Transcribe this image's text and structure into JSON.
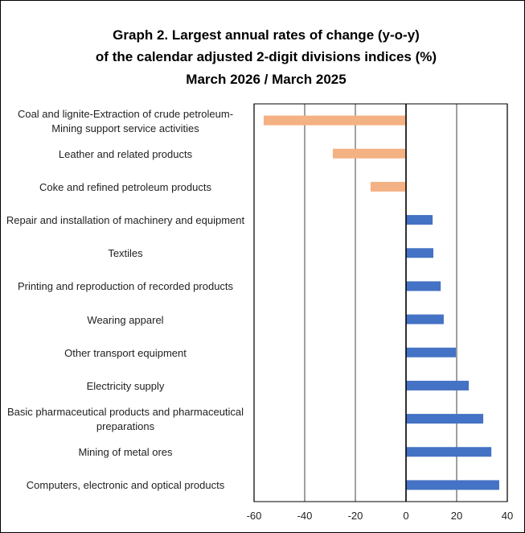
{
  "chart_data": {
    "type": "hbar",
    "title": [
      "Graph 2. Largest annual rates of change (y-o-y)",
      "of the calendar adjusted 2-digit divisions indices (%)",
      "March 2026 / March 2025"
    ],
    "categories": [
      "Coal and lignite-Extraction of crude petroleum-Mining support service activities",
      "Leather and related products",
      "Coke and refined petroleum products",
      "Repair and installation of machinery and equipment",
      "Textiles",
      "Printing and reproduction of recorded products",
      "Wearing apparel",
      "Other transport equipment",
      "Electricity supply",
      "Basic pharmaceutical products and pharmaceutical preparations",
      "Mining of metal ores",
      "Computers, electronic and optical products"
    ],
    "values": [
      -56.2,
      -28.9,
      -14.0,
      10.5,
      10.8,
      13.7,
      14.9,
      19.7,
      24.8,
      30.5,
      33.7,
      36.8
    ],
    "colors": {
      "negative": "#f4b183",
      "positive": "#4472c4"
    },
    "xlim": [
      -60,
      40
    ],
    "xticks": [
      -60,
      -40,
      -20,
      0,
      20,
      40
    ],
    "grid": true
  }
}
